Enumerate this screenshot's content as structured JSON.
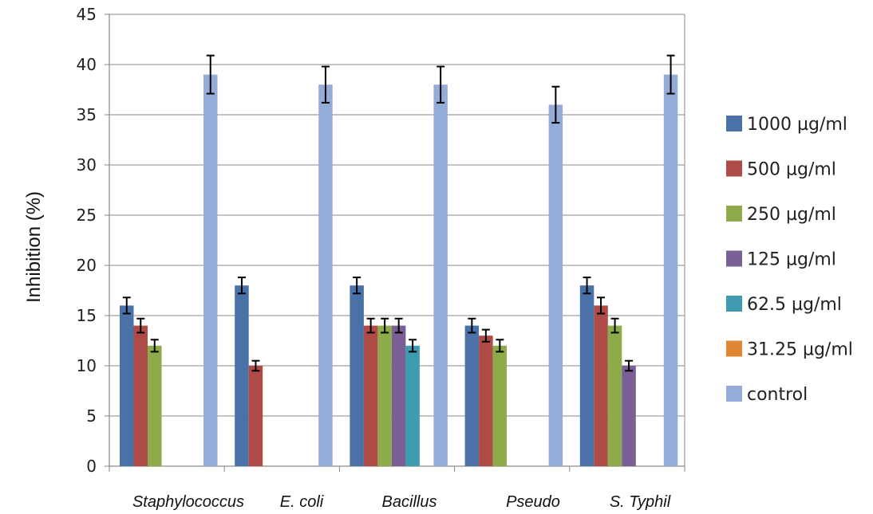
{
  "chart_data": {
    "type": "bar",
    "title": "",
    "xlabel": "",
    "ylabel": "Inhibition (%)",
    "ylim": [
      0,
      45
    ],
    "yticks": [
      0,
      5,
      10,
      15,
      20,
      25,
      30,
      35,
      40,
      45
    ],
    "grid": true,
    "legend_position": "right",
    "categories": [
      "Staphylococcus",
      "E. coli",
      "Bacillus",
      "Pseudo",
      "S. Typhil"
    ],
    "series": [
      {
        "name": "1000 µg/ml",
        "color": "#4a72a8",
        "values": [
          16,
          18,
          18,
          14,
          18
        ],
        "errors": [
          0.8,
          0.8,
          0.8,
          0.7,
          0.8
        ]
      },
      {
        "name": "500 µg/ml",
        "color": "#ae4b47",
        "values": [
          14,
          10,
          14,
          13,
          16
        ],
        "errors": [
          0.7,
          0.5,
          0.7,
          0.6,
          0.8
        ]
      },
      {
        "name": "250 µg/ml",
        "color": "#8eab4c",
        "values": [
          12,
          null,
          14,
          12,
          14
        ],
        "errors": [
          0.6,
          null,
          0.7,
          0.6,
          0.7
        ]
      },
      {
        "name": "125 µg/ml",
        "color": "#7a5f97",
        "values": [
          null,
          null,
          14,
          null,
          10
        ],
        "errors": [
          null,
          null,
          0.7,
          null,
          0.5
        ]
      },
      {
        "name": "62.5 µg/ml",
        "color": "#3f9bb0",
        "values": [
          null,
          null,
          12,
          null,
          null
        ],
        "errors": [
          null,
          null,
          0.6,
          null,
          null
        ]
      },
      {
        "name": "31.25 µg/ml",
        "color": "#e08733",
        "values": [
          null,
          null,
          null,
          null,
          null
        ],
        "errors": [
          null,
          null,
          null,
          null,
          null
        ]
      },
      {
        "name": "control",
        "color": "#94acd7",
        "values": [
          39,
          38,
          38,
          36,
          39
        ],
        "errors": [
          1.9,
          1.8,
          1.8,
          1.8,
          1.9
        ]
      }
    ]
  }
}
